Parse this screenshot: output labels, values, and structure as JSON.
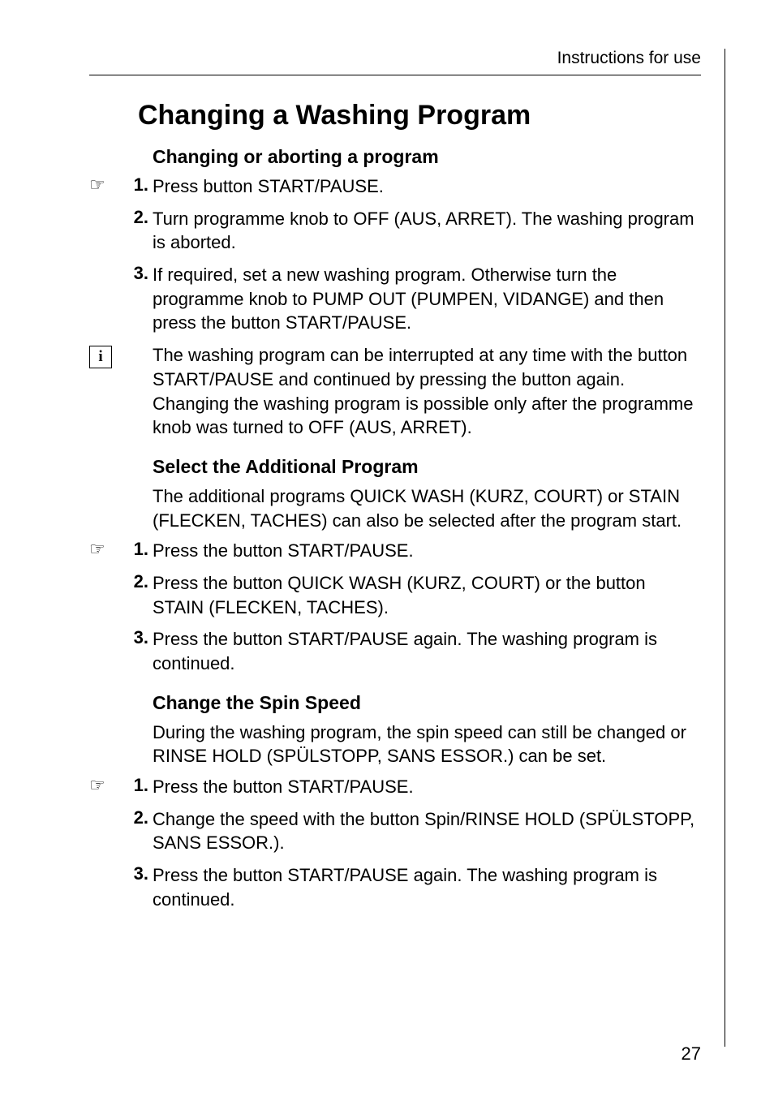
{
  "header": {
    "text": "Instructions for use"
  },
  "title": "Changing a Washing Program",
  "page_number": "27",
  "colors": {
    "background": "#ffffff",
    "text": "#000000",
    "border": "#000000"
  },
  "typography": {
    "header_fontsize": 21,
    "title_fontsize": 34,
    "section_title_fontsize": 23,
    "body_fontsize": 22,
    "pagenum_fontsize": 22
  },
  "sections": [
    {
      "title": "Changing or aborting a program",
      "intro": null,
      "steps": [
        {
          "indicator": "☞",
          "num": "1.",
          "text": "Press button START/PAUSE."
        },
        {
          "indicator": "",
          "num": "2.",
          "text": "Turn programme knob to OFF (AUS, ARRET). The washing program is aborted."
        },
        {
          "indicator": "",
          "num": "3.",
          "text": "If required, set a new washing program. Otherwise turn the programme knob to PUMP OUT (PUMPEN, VIDANGE) and then press the button START/PAUSE."
        }
      ],
      "info": "The washing program can be interrupted at any time with the button START/PAUSE and continued by pressing the button again.  Changing the washing program is possible only after the programme knob was turned to OFF (AUS, ARRET)."
    },
    {
      "title": "Select the Additional Program",
      "intro": "The additional programs QUICK WASH (KURZ, COURT) or STAIN (FLECKEN, TACHES) can also be selected after the program start.",
      "steps": [
        {
          "indicator": "☞",
          "num": "1.",
          "text": "Press the button START/PAUSE."
        },
        {
          "indicator": "",
          "num": "2.",
          "text": "Press the button QUICK WASH (KURZ, COURT) or the button STAIN (FLECKEN, TACHES)."
        },
        {
          "indicator": "",
          "num": "3.",
          "text": "Press the button START/PAUSE again. The washing program is continued."
        }
      ],
      "info": null
    },
    {
      "title": "Change the Spin Speed",
      "intro": "During the washing program, the spin speed can still be changed or RINSE HOLD (SPÜLSTOPP, SANS ESSOR.) can be set.",
      "steps": [
        {
          "indicator": "☞",
          "num": "1.",
          "text": "Press the button START/PAUSE."
        },
        {
          "indicator": "",
          "num": "2.",
          "text": "Change the speed with the button Spin/RINSE HOLD (SPÜLSTOPP, SANS ESSOR.)."
        },
        {
          "indicator": "",
          "num": "3.",
          "text": "Press the button START/PAUSE again. The washing program is continued."
        }
      ],
      "info": null
    }
  ]
}
